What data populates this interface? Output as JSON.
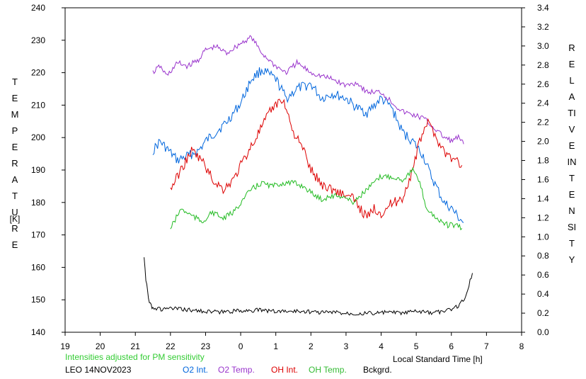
{
  "chart_data": {
    "type": "line",
    "x_ticks": [
      "19",
      "20",
      "21",
      "22",
      "23",
      "0",
      "1",
      "2",
      "3",
      "4",
      "5",
      "6",
      "7",
      "8"
    ],
    "x_range": [
      19,
      32
    ],
    "xlabel": "Local Standard Time [h]",
    "y_left": {
      "label": "TEMPERATURE",
      "unit": "[K]",
      "ticks": [
        140,
        150,
        160,
        170,
        180,
        190,
        200,
        210,
        220,
        230,
        240
      ],
      "range": [
        140,
        240
      ]
    },
    "y_right": {
      "label": "RELATIVE INTENSITY",
      "ticks": [
        "0.0",
        "0.2",
        "0.4",
        "0.6",
        "0.8",
        "1.0",
        "1.2",
        "1.4",
        "1.6",
        "1.8",
        "2.0",
        "2.2",
        "2.4",
        "2.6",
        "2.8",
        "3.0",
        "3.2",
        "3.4"
      ],
      "range": [
        0,
        3.4
      ]
    },
    "note": "Intensities adjusted for PM sensitivity",
    "station": "LEO 14NOV2023",
    "series": [
      {
        "name": "O2 Int.",
        "axis": "right",
        "color": "#0066dd",
        "x": [
          21.5,
          21.7,
          22.2,
          22.5,
          22.8,
          23.0,
          23.3,
          23.6,
          24.0,
          24.3,
          24.6,
          25.0,
          25.3,
          25.6,
          26.0,
          26.3,
          26.6,
          27.0,
          27.3,
          27.6,
          28.0,
          28.3,
          28.6,
          28.9,
          29.2,
          29.4,
          29.6,
          29.8,
          30.0,
          30.2,
          30.35
        ],
        "y": [
          1.9,
          2.0,
          1.8,
          1.85,
          1.9,
          2.0,
          2.1,
          2.2,
          2.4,
          2.65,
          2.75,
          2.65,
          2.45,
          2.55,
          2.6,
          2.45,
          2.5,
          2.45,
          2.35,
          2.3,
          2.45,
          2.35,
          2.1,
          2.0,
          1.85,
          1.65,
          1.5,
          1.35,
          1.3,
          1.2,
          1.15
        ]
      },
      {
        "name": "O2 Temp.",
        "axis": "left",
        "color": "#9933cc",
        "x": [
          21.5,
          21.7,
          21.9,
          22.2,
          22.5,
          22.8,
          23.0,
          23.3,
          23.6,
          24.0,
          24.3,
          24.6,
          25.0,
          25.3,
          25.6,
          26.0,
          26.3,
          26.6,
          27.0,
          27.3,
          27.6,
          28.0,
          28.3,
          28.6,
          28.9,
          29.2,
          29.4,
          29.6,
          29.8,
          30.0,
          30.2,
          30.35
        ],
        "y": [
          220,
          222,
          219,
          223,
          222,
          224,
          227,
          228,
          226,
          229,
          231,
          226,
          222,
          220,
          223,
          220,
          219,
          218,
          216,
          217,
          214,
          214,
          211,
          208,
          207,
          206,
          204,
          202,
          200,
          199,
          200,
          198
        ]
      },
      {
        "name": "OH Int.",
        "axis": "right",
        "color": "#dd0000",
        "x": [
          22.0,
          22.3,
          22.6,
          22.9,
          23.2,
          23.5,
          23.8,
          24.0,
          24.3,
          24.6,
          24.9,
          25.2,
          25.5,
          25.8,
          26.0,
          26.3,
          26.6,
          26.9,
          27.2,
          27.4,
          27.6,
          27.8,
          28.0,
          28.3,
          28.6,
          28.9,
          29.1,
          29.3,
          29.5,
          29.7,
          29.9,
          30.1,
          30.3
        ],
        "y": [
          1.5,
          1.7,
          1.9,
          1.8,
          1.6,
          1.5,
          1.6,
          1.75,
          1.95,
          2.15,
          2.35,
          2.45,
          2.1,
          1.9,
          1.7,
          1.55,
          1.5,
          1.45,
          1.4,
          1.3,
          1.2,
          1.3,
          1.25,
          1.35,
          1.4,
          1.7,
          2.0,
          2.2,
          2.1,
          1.95,
          1.85,
          1.8,
          1.75
        ]
      },
      {
        "name": "OH Temp.",
        "axis": "left",
        "color": "#22bb22",
        "x": [
          22.0,
          22.3,
          22.6,
          22.9,
          23.2,
          23.5,
          23.8,
          24.0,
          24.3,
          24.6,
          24.9,
          25.2,
          25.5,
          25.8,
          26.0,
          26.3,
          26.6,
          26.9,
          27.2,
          27.5,
          27.8,
          28.0,
          28.3,
          28.6,
          28.9,
          29.1,
          29.3,
          29.5,
          29.7,
          29.9,
          30.1,
          30.3
        ],
        "y": [
          172,
          178,
          176,
          174,
          177,
          175,
          177,
          180,
          184,
          186,
          185,
          186,
          186,
          185,
          183,
          181,
          182,
          182,
          180,
          183,
          186,
          188,
          188,
          187,
          190,
          186,
          178,
          176,
          174,
          173,
          173,
          172
        ]
      },
      {
        "name": "Bckgrd.",
        "axis": "right",
        "color": "#000000",
        "x": [
          21.25,
          21.3,
          21.35,
          21.4,
          21.45,
          21.5,
          21.7,
          22.0,
          22.3,
          22.6,
          23.0,
          23.4,
          23.8,
          24.2,
          24.6,
          25.0,
          25.4,
          25.8,
          26.2,
          26.6,
          27.0,
          27.4,
          27.8,
          28.2,
          28.6,
          29.0,
          29.4,
          29.8,
          30.0,
          30.2,
          30.4,
          30.5,
          30.6
        ],
        "y": [
          0.8,
          0.55,
          0.42,
          0.33,
          0.28,
          0.26,
          0.24,
          0.25,
          0.24,
          0.23,
          0.22,
          0.21,
          0.22,
          0.23,
          0.23,
          0.22,
          0.22,
          0.22,
          0.21,
          0.21,
          0.2,
          0.2,
          0.2,
          0.21,
          0.2,
          0.22,
          0.2,
          0.22,
          0.24,
          0.28,
          0.36,
          0.5,
          0.62
        ]
      }
    ]
  }
}
